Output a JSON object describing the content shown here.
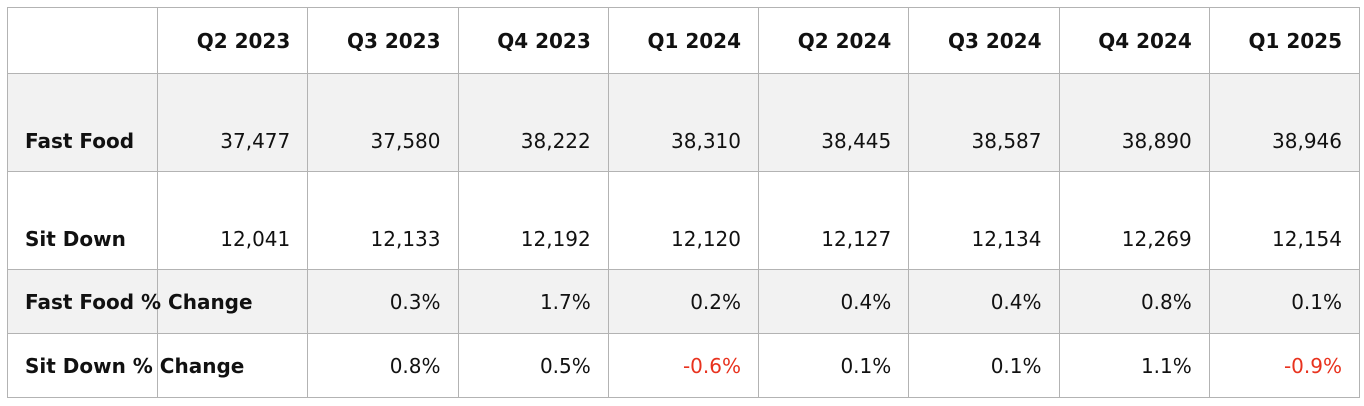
{
  "chart_data": {
    "type": "table",
    "columns": [
      "Q2 2023",
      "Q3 2023",
      "Q4 2023",
      "Q1 2024",
      "Q2 2024",
      "Q3 2024",
      "Q4 2024",
      "Q1 2025"
    ],
    "rows": [
      {
        "label": "Fast Food",
        "cells": [
          "37,477",
          "37,580",
          "38,222",
          "38,310",
          "38,445",
          "38,587",
          "38,890",
          "38,946"
        ]
      },
      {
        "label": "Sit Down",
        "cells": [
          "12,041",
          "12,133",
          "12,192",
          "12,120",
          "12,127",
          "12,134",
          "12,269",
          "12,154"
        ]
      },
      {
        "label": "Fast Food % Change",
        "cells": [
          "",
          "0.3%",
          "1.7%",
          "0.2%",
          "0.4%",
          "0.4%",
          "0.8%",
          "0.1%"
        ]
      },
      {
        "label": "Sit Down % Change",
        "cells": [
          "",
          "0.8%",
          "0.5%",
          "-0.6%",
          "0.1%",
          "0.1%",
          "1.1%",
          "-0.9%"
        ]
      }
    ],
    "colors": {
      "negative": "#e8321e",
      "shaded_row": "#f2f2f2",
      "border": "#b3b3b3",
      "text": "#111111"
    }
  }
}
